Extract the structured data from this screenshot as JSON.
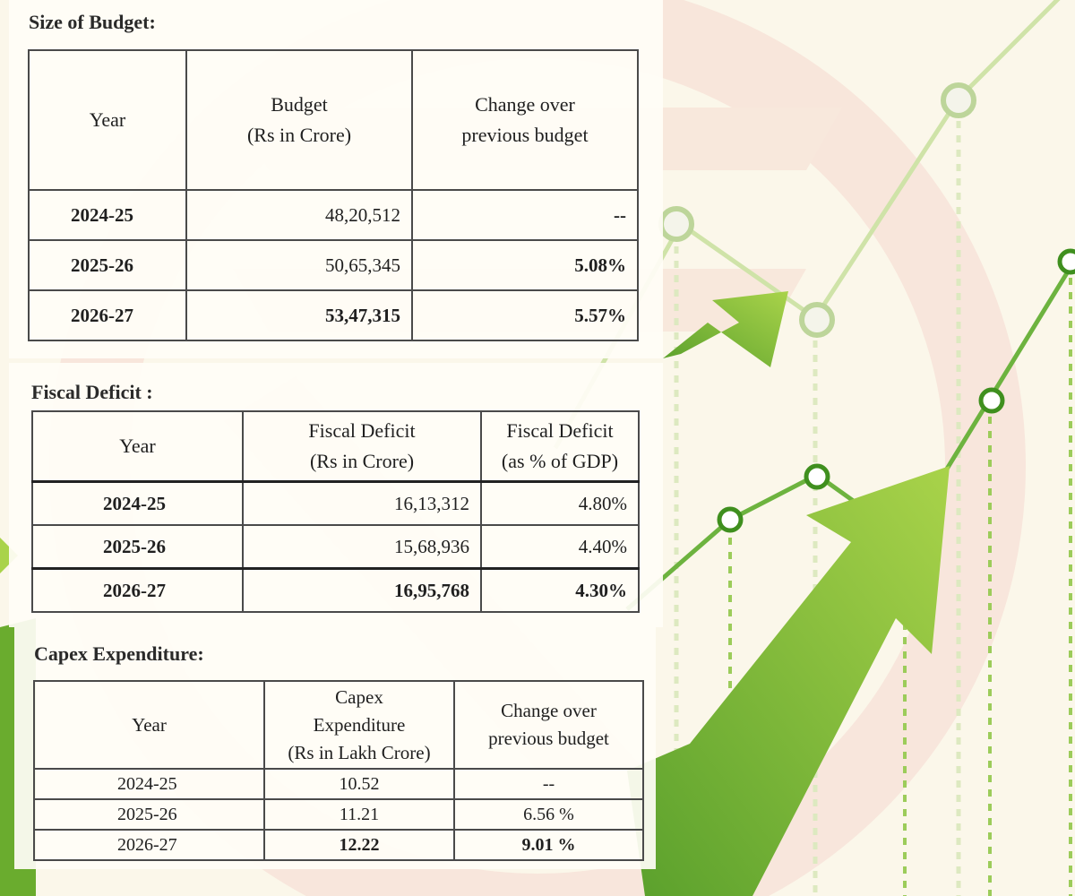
{
  "budget": {
    "title": "Size of Budget:",
    "headers": {
      "year": "Year",
      "amount_1": "Budget",
      "amount_2": "(Rs in Crore)",
      "change_1": "Change over",
      "change_2": "previous budget"
    },
    "rows": [
      {
        "year": "2024-25",
        "amount": "48,20,512",
        "change": "--"
      },
      {
        "year": "2025-26",
        "amount": "50,65,345",
        "change": "5.08%"
      },
      {
        "year": "2026-27",
        "amount": "53,47,315",
        "change": "5.57%"
      }
    ]
  },
  "fiscal": {
    "title": "Fiscal Deficit :",
    "headers": {
      "year": "Year",
      "amount_1": "Fiscal Deficit",
      "amount_2": "(Rs in Crore)",
      "pct_1": "Fiscal Deficit",
      "pct_2": "(as % of GDP)"
    },
    "rows": [
      {
        "year": "2024-25",
        "amount": "16,13,312",
        "pct": "4.80%"
      },
      {
        "year": "2025-26",
        "amount": "15,68,936",
        "pct": "4.40%"
      },
      {
        "year": "2026-27",
        "amount": "16,95,768",
        "pct": "4.30%"
      }
    ]
  },
  "capex": {
    "title": "Capex Expenditure:",
    "headers": {
      "year": "Year",
      "amount_1": "Capex",
      "amount_2": "Expenditure",
      "amount_3": "(Rs in Lakh Crore)",
      "change_1": "Change over",
      "change_2": "previous budget"
    },
    "rows": [
      {
        "year": "2024-25",
        "amount": "10.52",
        "change": "--"
      },
      {
        "year": "2025-26",
        "amount": "11.21",
        "change": "6.56 %"
      },
      {
        "year": "2026-27",
        "amount": "12.22",
        "change": "9.01 %"
      }
    ]
  },
  "colors": {
    "accent_green": "#8cc63f",
    "dark_green": "#5aa02c",
    "watermark": "#f6d9cf"
  }
}
